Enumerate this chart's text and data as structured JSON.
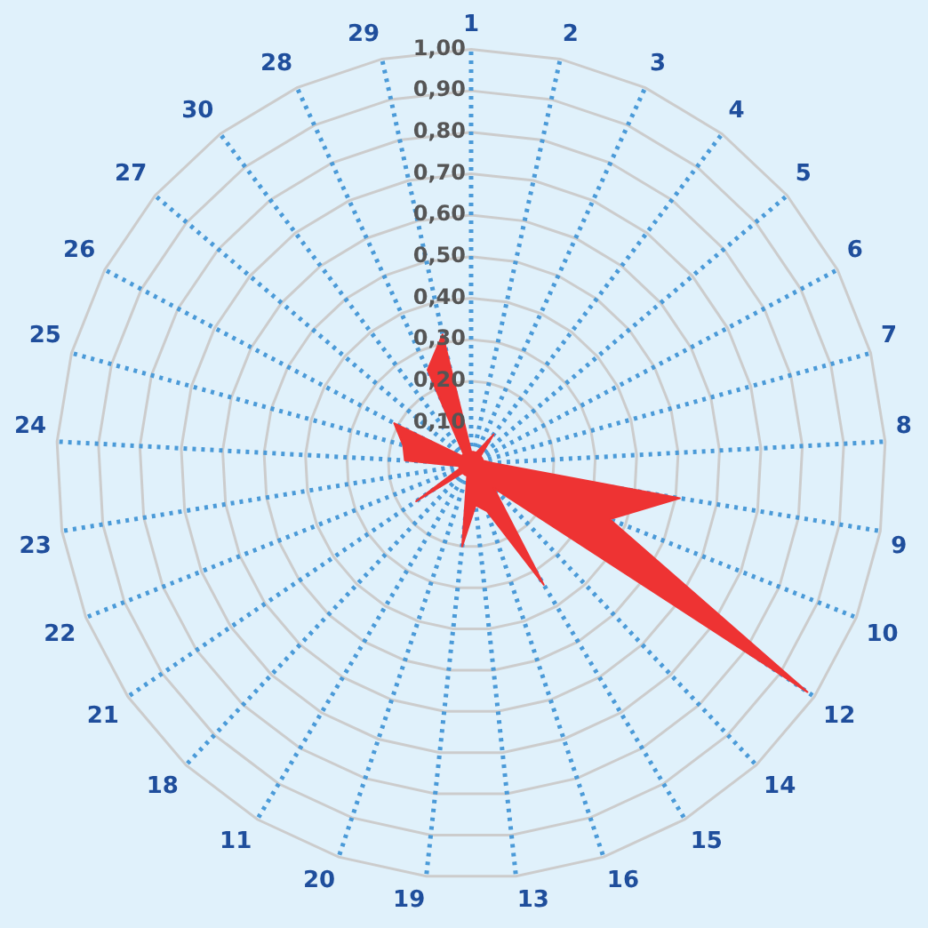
{
  "chart_data": {
    "type": "radar",
    "categories": [
      "1",
      "2",
      "3",
      "4",
      "5",
      "6",
      "7",
      "8",
      "9",
      "10",
      "12",
      "14",
      "15",
      "16",
      "13",
      "19",
      "20",
      "11",
      "18",
      "21",
      "22",
      "23",
      "24",
      "25",
      "26",
      "27",
      "30",
      "28",
      "29"
    ],
    "series": [
      {
        "color": "#ee3333",
        "values": [
          0.03,
          0.03,
          0.03,
          0.09,
          0.03,
          0.03,
          0.03,
          0.05,
          0.51,
          0.36,
          0.98,
          0.08,
          0.34,
          0.12,
          0.1,
          0.2,
          0.03,
          0.03,
          0.03,
          0.16,
          0.03,
          0.03,
          0.16,
          0.17,
          0.21,
          0.03,
          0.03,
          0.25,
          0.32
        ]
      }
    ],
    "ylim": [
      0,
      1
    ],
    "yticks": [
      {
        "value": 0.1,
        "label": "0,10"
      },
      {
        "value": 0.2,
        "label": "0,20"
      },
      {
        "value": 0.3,
        "label": "0,30"
      },
      {
        "value": 0.4,
        "label": "0,40"
      },
      {
        "value": 0.5,
        "label": "0,50"
      },
      {
        "value": 0.6,
        "label": "0,60"
      },
      {
        "value": 0.7,
        "label": "0,70"
      },
      {
        "value": 0.8,
        "label": "0,80"
      },
      {
        "value": 0.9,
        "label": "0,90"
      },
      {
        "value": 1,
        "label": "1,00"
      }
    ],
    "grid": true
  }
}
